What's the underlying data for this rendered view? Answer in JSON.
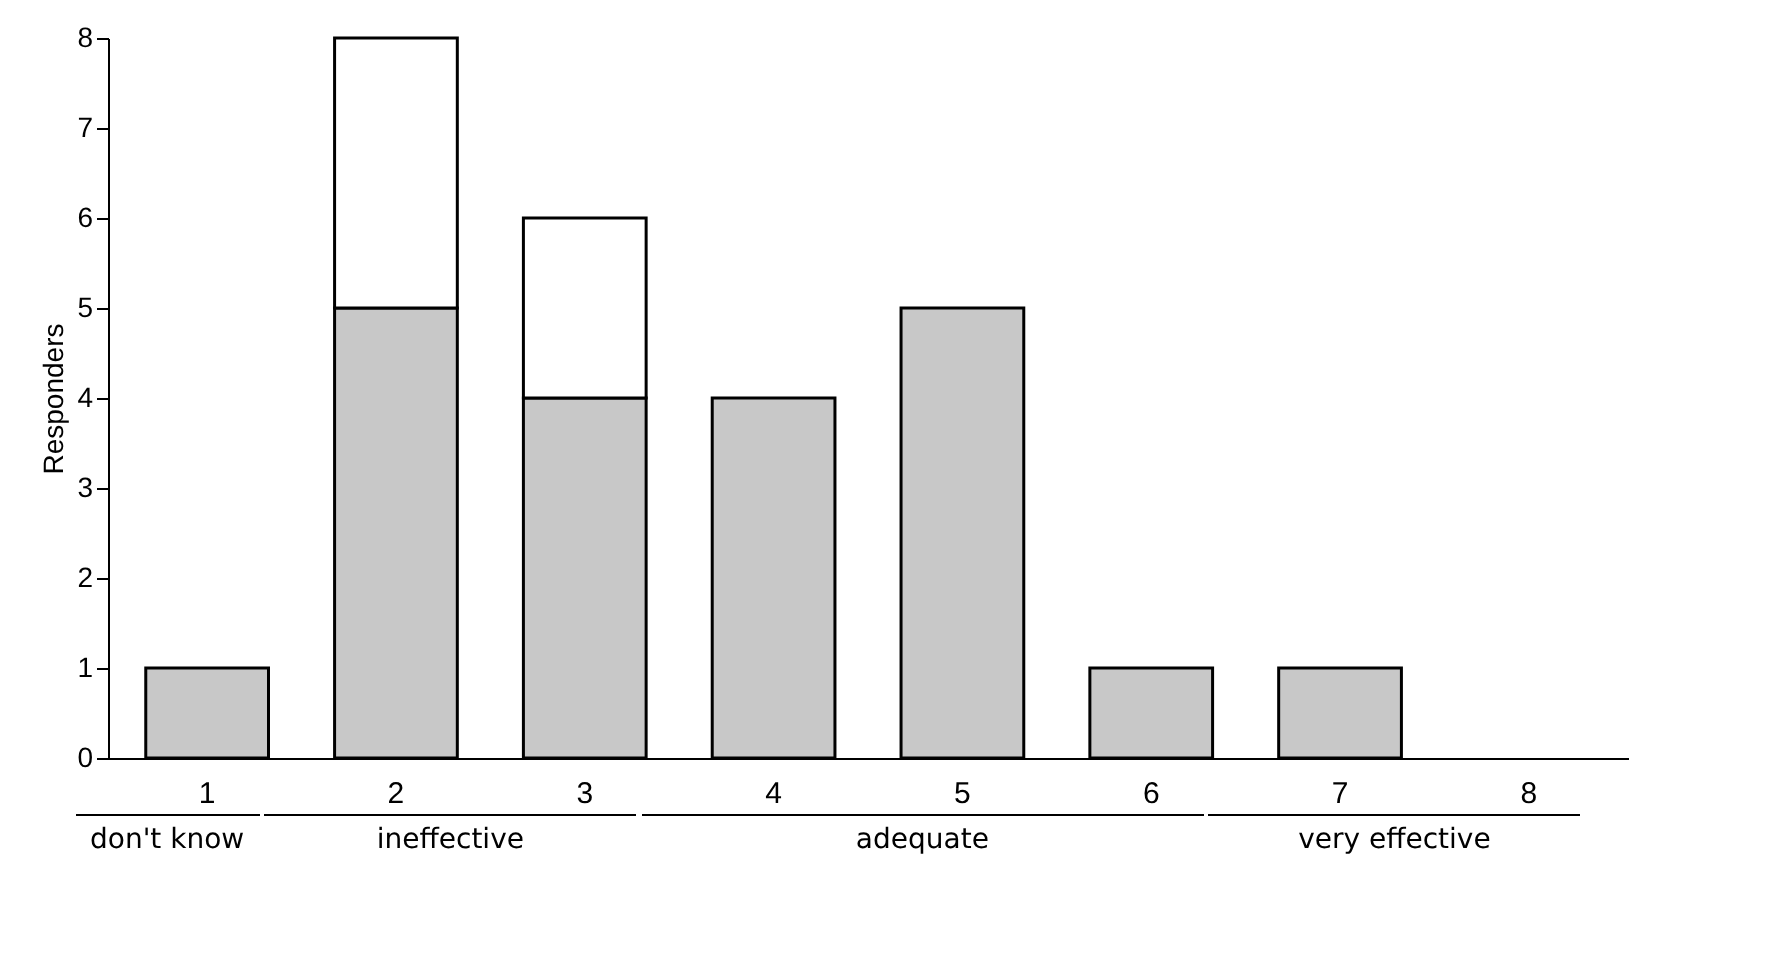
{
  "chart_data": {
    "type": "bar",
    "stacked": true,
    "ylabel": "Responders",
    "categories": [
      "1",
      "2",
      "3",
      "4",
      "5",
      "6",
      "7",
      "8"
    ],
    "series": [
      {
        "color": "#c8c8c8",
        "values": [
          1,
          5,
          4,
          4,
          5,
          1,
          1,
          0
        ]
      },
      {
        "color": "#ffffff",
        "values": [
          0,
          3,
          2,
          0,
          0,
          0,
          0,
          0
        ]
      }
    ],
    "ylim": [
      0,
      8
    ],
    "yticks": [
      0,
      1,
      2,
      3,
      4,
      5,
      6,
      7,
      8
    ],
    "grid": false,
    "annotations": [
      "don't know",
      "ineffective",
      "adequate",
      "very effective"
    ]
  }
}
